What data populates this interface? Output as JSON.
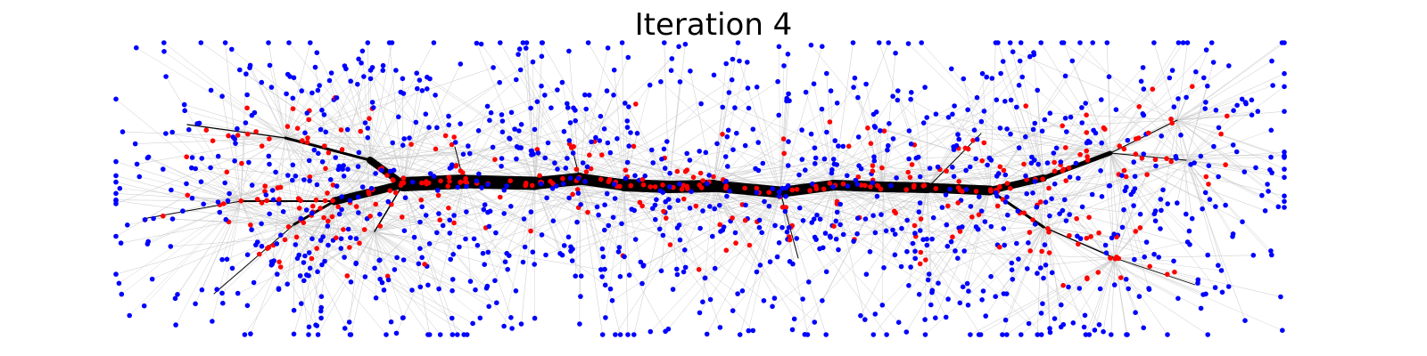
{
  "title": "Iteration 4",
  "colors": {
    "background": "#ffffff",
    "edge": "#c8c8c8",
    "trunk": "#000000",
    "interior_node": "#ff0000",
    "leaf_node": "#0000ff"
  },
  "diagram": {
    "type": "network-graph",
    "node_classes": [
      "interior",
      "leaf"
    ]
  }
}
